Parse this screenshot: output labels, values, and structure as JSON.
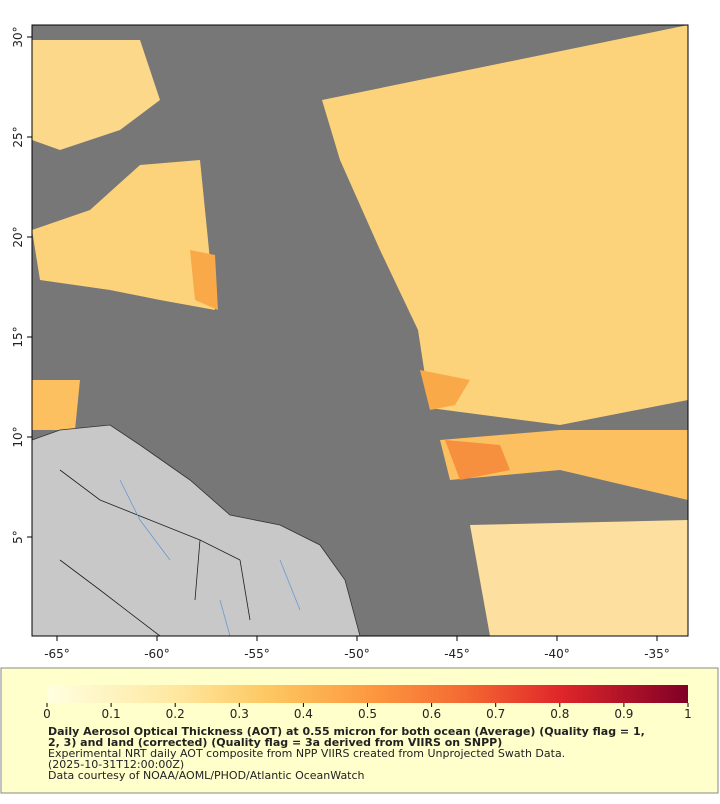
{
  "map": {
    "lon_ticks": [
      {
        "value": -65,
        "label": "-65°"
      },
      {
        "value": -60,
        "label": "-60°"
      },
      {
        "value": -55,
        "label": "-55°"
      },
      {
        "value": -50,
        "label": "-50°"
      },
      {
        "value": -45,
        "label": "-45°"
      },
      {
        "value": -40,
        "label": "-40°"
      },
      {
        "value": -35,
        "label": "-35°"
      }
    ],
    "lat_ticks": [
      {
        "value": 5,
        "label": "5°"
      },
      {
        "value": 10,
        "label": "10°"
      },
      {
        "value": 15,
        "label": "15°"
      },
      {
        "value": 20,
        "label": "20°"
      },
      {
        "value": 25,
        "label": "25°"
      },
      {
        "value": 30,
        "label": "30°"
      }
    ],
    "xlim": [
      -66.25,
      -33.45
    ],
    "ylim": [
      0.05,
      30.6
    ]
  },
  "colorbar": {
    "range": [
      0,
      1
    ],
    "ticks": [
      0,
      0.1,
      0.2,
      0.3,
      0.4,
      0.5,
      0.6,
      0.7,
      0.8,
      0.9,
      1
    ]
  },
  "caption": {
    "title_line_1": "Daily Aerosol Optical Thickness (AOT) at 0.55 micron for both ocean (Average) (Quality flag = 1,",
    "title_line_2": "2, 3) and land (corrected) (Quality flag = 3a derived from VIIRS on SNPP)",
    "line_3": "Experimental NRT daily AOT composite from NPP VIIRS created from Unprojected Swath Data.",
    "line_4": "(2025-10-31T12:00:00Z)",
    "line_5": "Data courtesy of NOAA/AOML/PHOD/Atlantic OceanWatch"
  }
}
